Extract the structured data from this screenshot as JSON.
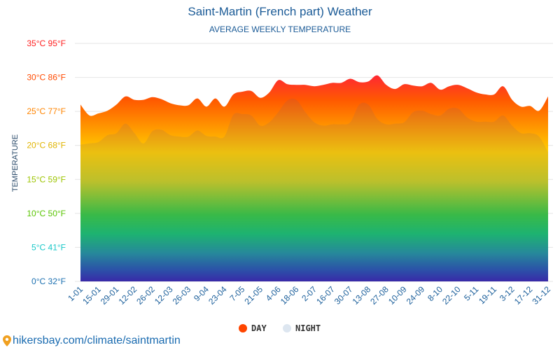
{
  "chart_data": {
    "type": "area",
    "title": "Saint-Martin (French part) Weather",
    "subtitle": "AVERAGE WEEKLY TEMPERATURE",
    "ylabel": "TEMPERATURE",
    "ylim": [
      0,
      35
    ],
    "y_ticks": [
      {
        "value": 0,
        "label": "0°C 32°F",
        "color": "#1a6fb0"
      },
      {
        "value": 5,
        "label": "5°C 41°F",
        "color": "#18c8c8"
      },
      {
        "value": 10,
        "label": "10°C 50°F",
        "color": "#58c400"
      },
      {
        "value": 15,
        "label": "15°C 59°F",
        "color": "#9cc400"
      },
      {
        "value": 20,
        "label": "20°C 68°F",
        "color": "#e0b400"
      },
      {
        "value": 25,
        "label": "25°C 77°F",
        "color": "#ff8400"
      },
      {
        "value": 30,
        "label": "30°C 86°F",
        "color": "#ff4a00"
      },
      {
        "value": 35,
        "label": "35°C 95°F",
        "color": "#ff2020"
      }
    ],
    "x_tick_labels": [
      "1-01",
      "15-01",
      "29-01",
      "12-02",
      "26-02",
      "12-03",
      "26-03",
      "9-04",
      "23-04",
      "7-05",
      "21-05",
      "4-06",
      "18-06",
      "2-07",
      "16-07",
      "30-07",
      "13-08",
      "27-08",
      "10-09",
      "24-09",
      "8-10",
      "22-10",
      "5-11",
      "19-11",
      "3-12",
      "17-12",
      "31-12"
    ],
    "grid": true,
    "legend_position": "bottom",
    "series": [
      {
        "name": "DAY",
        "color": "#ff4500",
        "values": [
          26.0,
          24.4,
          24.7,
          25.1,
          26.0,
          27.2,
          26.7,
          26.7,
          27.1,
          26.8,
          26.2,
          25.9,
          25.9,
          26.9,
          25.7,
          26.9,
          25.7,
          27.5,
          27.9,
          28.0,
          27.0,
          27.8,
          29.6,
          29.0,
          28.9,
          28.9,
          28.7,
          28.9,
          29.2,
          29.2,
          29.8,
          29.3,
          29.4,
          30.3,
          28.9,
          28.3,
          29.0,
          28.8,
          28.7,
          29.2,
          28.2,
          28.7,
          28.9,
          28.4,
          27.8,
          27.5,
          27.5,
          28.7,
          26.7,
          25.7,
          25.8,
          25.1,
          27.2
        ]
      },
      {
        "name": "NIGHT",
        "color": "#dde6f0",
        "values": [
          20.1,
          20.3,
          20.5,
          21.5,
          21.8,
          23.2,
          21.8,
          20.3,
          22.1,
          22.3,
          21.5,
          21.3,
          21.3,
          22.2,
          21.4,
          21.3,
          21.3,
          24.5,
          24.6,
          24.4,
          22.9,
          23.4,
          24.9,
          26.6,
          26.7,
          24.9,
          23.4,
          22.9,
          23.1,
          23.1,
          23.4,
          26.0,
          26.0,
          23.9,
          23.1,
          23.2,
          23.4,
          24.9,
          25.1,
          24.6,
          24.4,
          25.4,
          25.4,
          24.1,
          23.5,
          23.5,
          23.5,
          24.4,
          22.9,
          21.8,
          21.8,
          21.3,
          19.0
        ]
      }
    ]
  },
  "footer": {
    "link": "hikersbay.com/climate/saintmartin",
    "icon": "map-pin-icon"
  }
}
